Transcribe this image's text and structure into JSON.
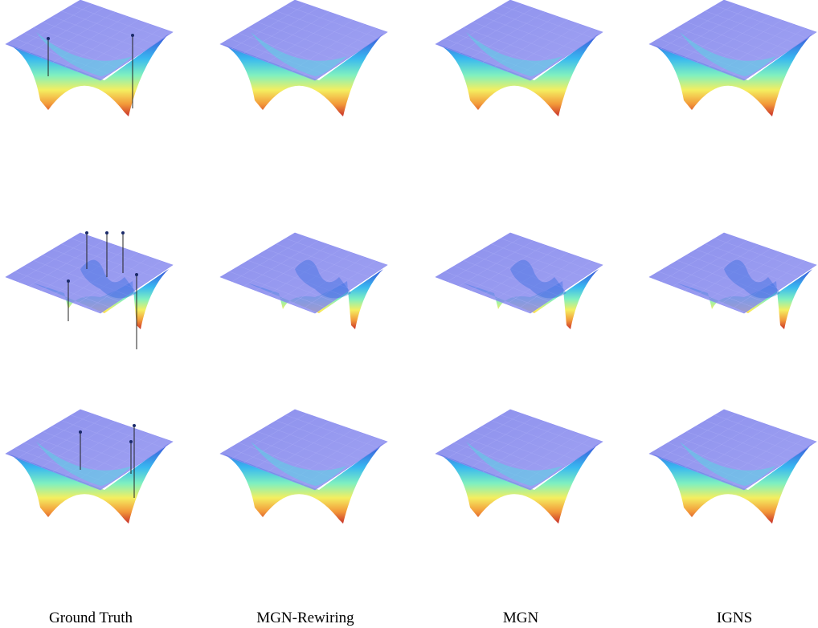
{
  "columns": [
    "Ground Truth",
    "MGN-Rewiring",
    "MGN",
    "IGNS"
  ]
}
